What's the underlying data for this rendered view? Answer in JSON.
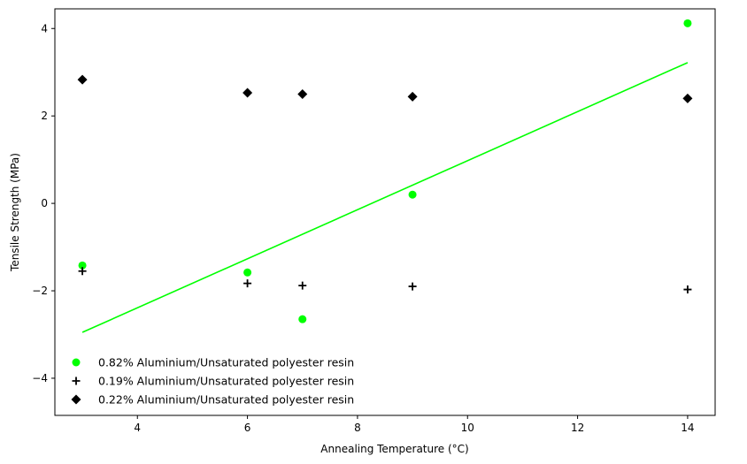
{
  "chart_data": {
    "type": "scatter",
    "xlabel": "Annealing Temperature (°C)",
    "ylabel": "Tensile Strength (MPa)",
    "xlim": [
      2.5,
      14.5
    ],
    "ylim": [
      -4.85,
      4.45
    ],
    "xticks": [
      4,
      6,
      8,
      10,
      12,
      14
    ],
    "yticks": [
      -4,
      -2,
      0,
      2,
      4
    ],
    "grid": false,
    "legend_position": "lower-left",
    "series": [
      {
        "name": "0.82% Aluminium/Unsaturated polyester resin",
        "marker": "circle",
        "color": "#00ff00",
        "points": [
          [
            3,
            -1.42
          ],
          [
            6,
            -1.58
          ],
          [
            7,
            -2.65
          ],
          [
            9,
            0.2
          ],
          [
            14,
            4.12
          ]
        ]
      },
      {
        "name": "0.19% Aluminium/Unsaturated polyester resin",
        "marker": "plus",
        "color": "#000000",
        "points": [
          [
            3,
            -1.55
          ],
          [
            6,
            -1.83
          ],
          [
            7,
            -1.88
          ],
          [
            9,
            -1.9
          ],
          [
            14,
            -1.97
          ]
        ]
      },
      {
        "name": "0.22% Aluminium/Unsaturated polyester resin",
        "marker": "diamond",
        "color": "#000000",
        "points": [
          [
            3,
            2.83
          ],
          [
            6,
            2.53
          ],
          [
            7,
            2.5
          ],
          [
            9,
            2.44
          ],
          [
            14,
            2.4
          ]
        ]
      }
    ],
    "trendline": {
      "series": "0.82% Aluminium/Unsaturated polyester resin",
      "color": "#00ff00",
      "from": [
        3,
        -2.95
      ],
      "to": [
        14,
        3.22
      ]
    }
  }
}
